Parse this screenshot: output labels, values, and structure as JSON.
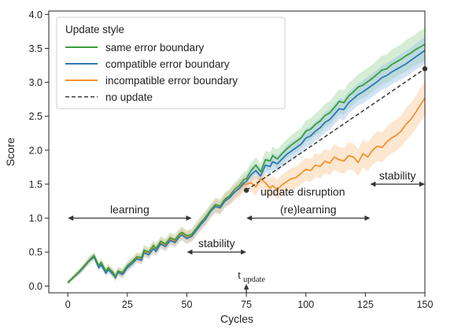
{
  "chart_data": {
    "type": "line",
    "xlabel": "Cycles",
    "ylabel": "Score",
    "xlim": [
      -8,
      150
    ],
    "ylim": [
      -0.1,
      4.05
    ],
    "xticks": [
      "0",
      "25",
      "50",
      "75",
      "100",
      "125",
      "150"
    ],
    "xtick_values": [
      0,
      25,
      50,
      75,
      100,
      125,
      150
    ],
    "yticks": [
      "0.0",
      "0.5",
      "1.0",
      "1.5",
      "2.0",
      "2.5",
      "3.0",
      "3.5",
      "4.0"
    ],
    "ytick_values": [
      0,
      0.5,
      1.0,
      1.5,
      2.0,
      2.5,
      3.0,
      3.5,
      4.0
    ],
    "grid": false,
    "legend": {
      "title": "Update style",
      "placement": "top-left",
      "entries": [
        "same error boundary",
        "compatible error boundary",
        "incompatible error boundary",
        "no update"
      ]
    },
    "series": [
      {
        "name": "same error boundary",
        "color": "#3a9e3a",
        "band_color": "#9fd69f",
        "x": [
          0,
          5,
          9,
          11,
          13,
          14,
          16,
          17,
          19,
          20,
          21,
          23,
          25,
          27,
          29,
          31,
          32,
          34,
          36,
          37,
          39,
          41,
          43,
          45,
          47,
          48,
          50,
          52,
          54,
          56,
          58,
          60,
          62,
          64,
          66,
          68,
          70,
          72,
          74,
          75,
          77,
          79,
          81,
          83,
          85,
          86,
          88,
          90,
          92,
          94,
          96,
          98,
          100,
          102,
          104,
          106,
          108,
          110,
          112,
          114,
          116,
          118,
          120,
          122,
          124,
          126,
          128,
          130,
          132,
          134,
          136,
          138,
          140,
          142,
          144,
          146,
          148,
          150
        ],
        "y": [
          0.05,
          0.22,
          0.38,
          0.45,
          0.3,
          0.35,
          0.22,
          0.27,
          0.2,
          0.14,
          0.22,
          0.2,
          0.3,
          0.36,
          0.43,
          0.42,
          0.53,
          0.5,
          0.6,
          0.55,
          0.66,
          0.62,
          0.71,
          0.68,
          0.77,
          0.79,
          0.74,
          0.76,
          0.85,
          0.94,
          1.02,
          1.12,
          1.2,
          1.18,
          1.28,
          1.33,
          1.42,
          1.48,
          1.57,
          1.58,
          1.7,
          1.78,
          1.68,
          1.86,
          1.84,
          1.92,
          1.87,
          1.95,
          2.02,
          2.08,
          2.13,
          2.18,
          2.28,
          2.31,
          2.38,
          2.43,
          2.51,
          2.55,
          2.63,
          2.72,
          2.7,
          2.8,
          2.86,
          2.93,
          2.96,
          3.01,
          3.06,
          3.12,
          3.18,
          3.2,
          3.26,
          3.3,
          3.34,
          3.39,
          3.43,
          3.48,
          3.52,
          3.56
        ],
        "band": [
          0.03,
          0.04,
          0.05,
          0.05,
          0.05,
          0.05,
          0.05,
          0.05,
          0.06,
          0.06,
          0.06,
          0.06,
          0.06,
          0.06,
          0.06,
          0.07,
          0.07,
          0.07,
          0.07,
          0.07,
          0.07,
          0.08,
          0.08,
          0.08,
          0.08,
          0.08,
          0.08,
          0.08,
          0.09,
          0.09,
          0.09,
          0.09,
          0.1,
          0.1,
          0.1,
          0.1,
          0.1,
          0.11,
          0.11,
          0.11,
          0.12,
          0.12,
          0.12,
          0.13,
          0.13,
          0.13,
          0.14,
          0.14,
          0.14,
          0.15,
          0.15,
          0.15,
          0.16,
          0.16,
          0.16,
          0.17,
          0.17,
          0.17,
          0.18,
          0.18,
          0.18,
          0.19,
          0.19,
          0.19,
          0.2,
          0.2,
          0.2,
          0.21,
          0.21,
          0.21,
          0.22,
          0.22,
          0.22,
          0.23,
          0.23,
          0.23,
          0.24,
          0.24
        ]
      },
      {
        "name": "compatible error boundary",
        "color": "#2f78b5",
        "band_color": "#9cc3e6",
        "x": [
          0,
          5,
          9,
          11,
          13,
          14,
          16,
          17,
          19,
          20,
          21,
          23,
          25,
          27,
          29,
          31,
          32,
          34,
          36,
          37,
          39,
          41,
          43,
          45,
          47,
          48,
          50,
          52,
          54,
          56,
          58,
          60,
          62,
          64,
          66,
          68,
          70,
          72,
          74,
          75,
          77,
          79,
          81,
          83,
          85,
          86,
          88,
          90,
          92,
          94,
          96,
          98,
          100,
          102,
          104,
          106,
          108,
          110,
          112,
          114,
          116,
          118,
          120,
          122,
          124,
          126,
          128,
          130,
          132,
          134,
          136,
          138,
          140,
          142,
          144,
          146,
          148,
          150
        ],
        "y": [
          0.05,
          0.21,
          0.37,
          0.43,
          0.27,
          0.31,
          0.19,
          0.24,
          0.17,
          0.12,
          0.2,
          0.17,
          0.27,
          0.33,
          0.4,
          0.38,
          0.49,
          0.46,
          0.55,
          0.51,
          0.62,
          0.58,
          0.67,
          0.64,
          0.73,
          0.75,
          0.7,
          0.73,
          0.82,
          0.91,
          0.99,
          1.1,
          1.17,
          1.15,
          1.25,
          1.3,
          1.38,
          1.44,
          1.52,
          1.54,
          1.64,
          1.7,
          1.62,
          1.78,
          1.76,
          1.83,
          1.8,
          1.87,
          1.94,
          1.99,
          2.04,
          2.09,
          2.18,
          2.21,
          2.28,
          2.33,
          2.41,
          2.45,
          2.53,
          2.61,
          2.6,
          2.7,
          2.76,
          2.82,
          2.86,
          2.91,
          2.96,
          3.01,
          3.07,
          3.1,
          3.15,
          3.19,
          3.23,
          3.27,
          3.32,
          3.37,
          3.42,
          3.47
        ],
        "band": [
          0.03,
          0.04,
          0.05,
          0.05,
          0.05,
          0.05,
          0.05,
          0.05,
          0.05,
          0.05,
          0.05,
          0.06,
          0.06,
          0.06,
          0.06,
          0.06,
          0.06,
          0.06,
          0.07,
          0.07,
          0.07,
          0.07,
          0.07,
          0.07,
          0.08,
          0.08,
          0.08,
          0.08,
          0.08,
          0.08,
          0.09,
          0.09,
          0.09,
          0.09,
          0.09,
          0.1,
          0.1,
          0.1,
          0.1,
          0.1,
          0.11,
          0.11,
          0.11,
          0.11,
          0.12,
          0.12,
          0.12,
          0.12,
          0.13,
          0.13,
          0.13,
          0.13,
          0.14,
          0.14,
          0.14,
          0.14,
          0.15,
          0.15,
          0.15,
          0.15,
          0.16,
          0.16,
          0.16,
          0.16,
          0.17,
          0.17,
          0.17,
          0.17,
          0.18,
          0.18,
          0.18,
          0.18,
          0.19,
          0.19,
          0.19,
          0.19,
          0.2,
          0.2
        ]
      },
      {
        "name": "incompatible error boundary",
        "color": "#f5922e",
        "band_color": "#fbc99a",
        "x": [
          0,
          5,
          9,
          11,
          13,
          14,
          16,
          17,
          19,
          20,
          21,
          23,
          25,
          27,
          29,
          31,
          32,
          34,
          36,
          37,
          39,
          41,
          43,
          45,
          47,
          48,
          50,
          52,
          54,
          56,
          58,
          60,
          62,
          64,
          66,
          68,
          70,
          72,
          74,
          75,
          77,
          79,
          81,
          83,
          85,
          86,
          88,
          90,
          92,
          94,
          96,
          98,
          100,
          102,
          104,
          106,
          108,
          110,
          112,
          114,
          116,
          118,
          120,
          122,
          124,
          126,
          128,
          130,
          132,
          134,
          136,
          138,
          140,
          142,
          144,
          146,
          148,
          150
        ],
        "y": [
          0.05,
          0.22,
          0.38,
          0.44,
          0.29,
          0.33,
          0.21,
          0.26,
          0.19,
          0.14,
          0.21,
          0.19,
          0.29,
          0.35,
          0.42,
          0.4,
          0.51,
          0.48,
          0.58,
          0.53,
          0.64,
          0.6,
          0.69,
          0.66,
          0.75,
          0.77,
          0.72,
          0.75,
          0.83,
          0.92,
          1.0,
          1.1,
          1.18,
          1.16,
          1.26,
          1.31,
          1.38,
          1.43,
          1.5,
          1.5,
          1.52,
          1.46,
          1.58,
          1.52,
          1.44,
          1.48,
          1.42,
          1.49,
          1.54,
          1.58,
          1.6,
          1.66,
          1.72,
          1.7,
          1.78,
          1.76,
          1.84,
          1.81,
          1.9,
          1.86,
          1.84,
          1.92,
          1.9,
          1.82,
          1.95,
          1.9,
          2.0,
          2.06,
          2.04,
          2.12,
          2.18,
          2.22,
          2.28,
          2.38,
          2.45,
          2.55,
          2.66,
          2.77
        ],
        "band": [
          0.03,
          0.04,
          0.05,
          0.05,
          0.05,
          0.05,
          0.05,
          0.05,
          0.06,
          0.06,
          0.06,
          0.06,
          0.06,
          0.06,
          0.07,
          0.07,
          0.07,
          0.07,
          0.07,
          0.08,
          0.08,
          0.08,
          0.08,
          0.08,
          0.09,
          0.09,
          0.09,
          0.09,
          0.09,
          0.1,
          0.1,
          0.1,
          0.1,
          0.11,
          0.11,
          0.11,
          0.12,
          0.12,
          0.12,
          0.12,
          0.13,
          0.13,
          0.13,
          0.14,
          0.14,
          0.14,
          0.15,
          0.15,
          0.15,
          0.16,
          0.16,
          0.16,
          0.17,
          0.17,
          0.17,
          0.18,
          0.18,
          0.18,
          0.19,
          0.19,
          0.19,
          0.2,
          0.2,
          0.2,
          0.21,
          0.21,
          0.21,
          0.22,
          0.22,
          0.22,
          0.23,
          0.23,
          0.23,
          0.24,
          0.24,
          0.24,
          0.25,
          0.25
        ]
      },
      {
        "name": "no update",
        "color": "#3a3a3a",
        "style": "dashed",
        "x": [
          75,
          150
        ],
        "y": [
          1.41,
          3.2
        ],
        "endpoint_markers": true
      }
    ],
    "annotations": {
      "learning": {
        "text": "learning",
        "x_start": 0,
        "x_end": 52,
        "y": 1.0
      },
      "stability_early": {
        "text": "stability",
        "x_start": 50,
        "x_end": 75,
        "y": 0.5
      },
      "update_disruption": {
        "text": "update disruption",
        "y": 1.39
      },
      "relearning": {
        "text": "(re)learning",
        "x_start": 75,
        "x_end": 127,
        "y": 1.0
      },
      "stability_late": {
        "text": "stability",
        "x_start": 127,
        "x_end": 150,
        "y": 1.5
      },
      "t_update": {
        "text": "t",
        "subscript": "update",
        "x": 75
      }
    }
  }
}
